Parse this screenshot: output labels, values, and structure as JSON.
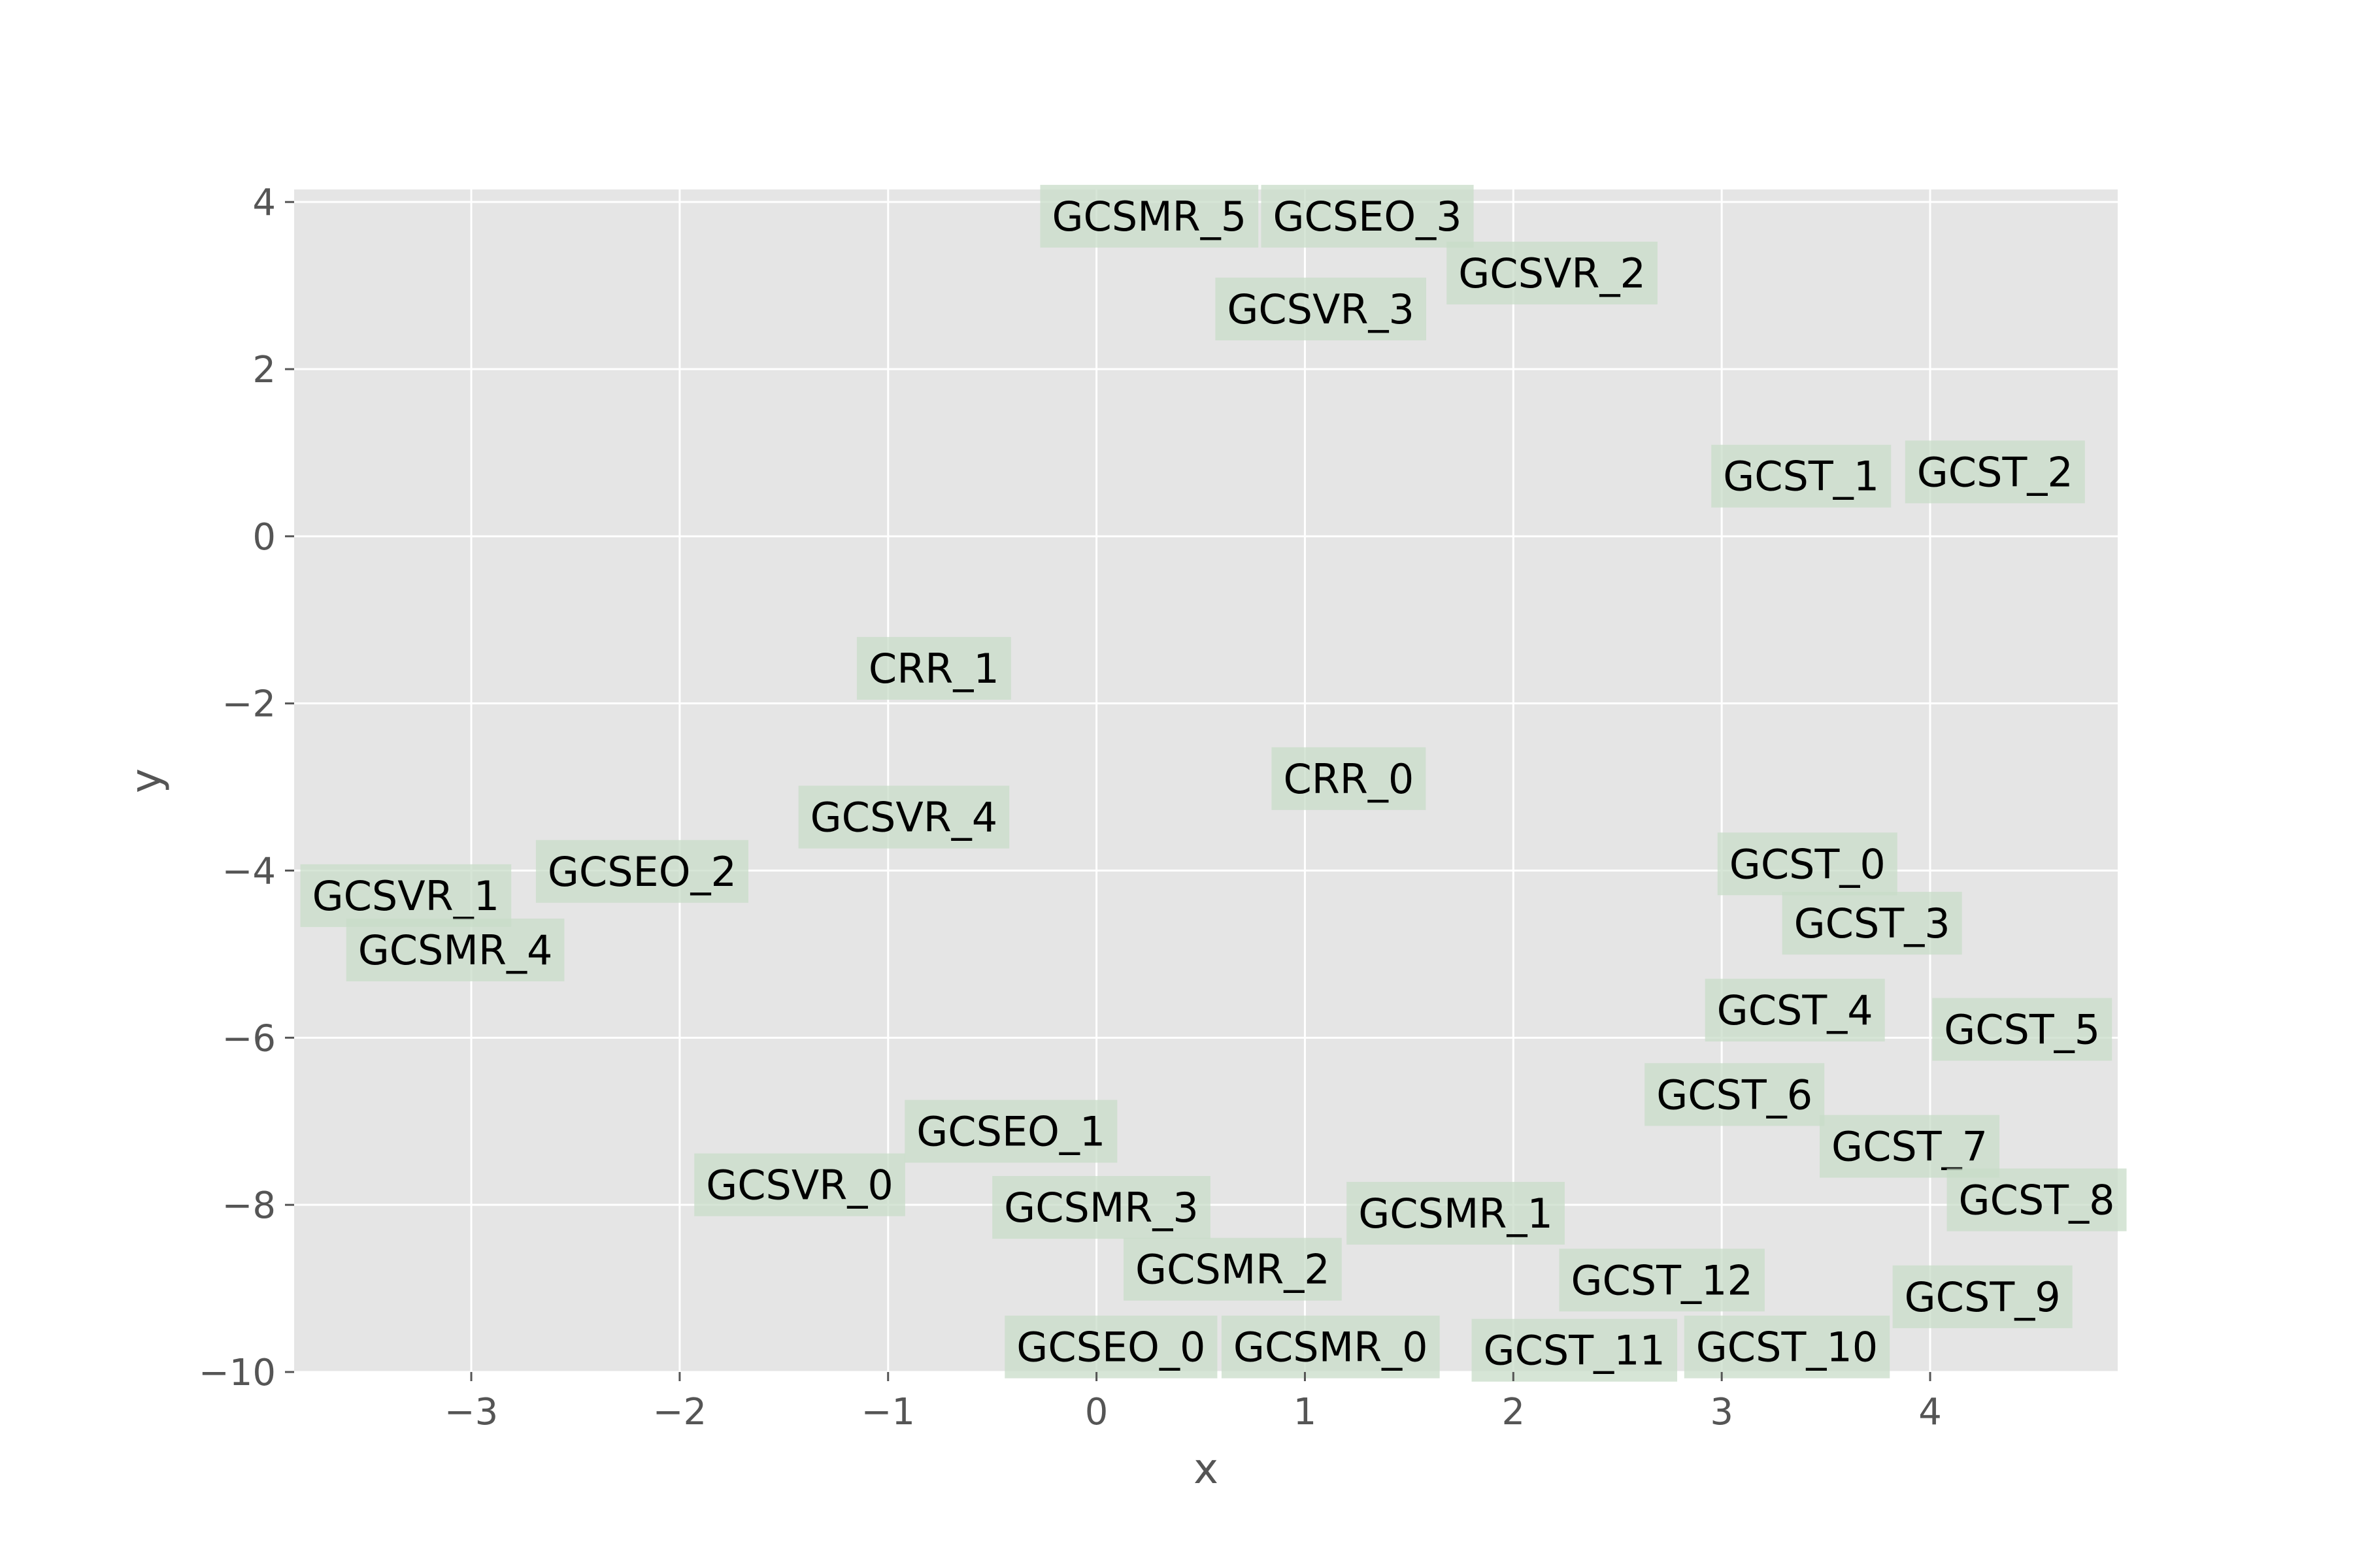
{
  "chart_data": {
    "type": "scatter",
    "title": "",
    "xlabel": "x",
    "ylabel": "y",
    "xlim": [
      -3.85,
      4.9
    ],
    "ylim": [
      -10,
      4.15
    ],
    "xticks": [
      -3,
      -2,
      -1,
      0,
      1,
      2,
      3,
      4
    ],
    "yticks": [
      -10,
      -8,
      -6,
      -4,
      -2,
      0,
      2,
      4
    ],
    "xtick_labels": [
      "−3",
      "−2",
      "−1",
      "0",
      "1",
      "2",
      "3",
      "4"
    ],
    "ytick_labels": [
      "−10",
      "−8",
      "−6",
      "−4",
      "−2",
      "0",
      "2",
      "4"
    ],
    "grid": true,
    "colors": {
      "plot_background": "#e5e5e5",
      "grid": "#ffffff",
      "label_box": "#c8dcc8"
    },
    "points": [
      {
        "label": "GCSMR_5",
        "x": -0.27,
        "y": 3.83
      },
      {
        "label": "GCSEO_3",
        "x": 0.79,
        "y": 3.83
      },
      {
        "label": "GCSVR_2",
        "x": 1.68,
        "y": 3.15
      },
      {
        "label": "GCSVR_3",
        "x": 0.57,
        "y": 2.72
      },
      {
        "label": "GCST_1",
        "x": 2.95,
        "y": 0.72
      },
      {
        "label": "GCST_2",
        "x": 3.88,
        "y": 0.77
      },
      {
        "label": "CRR_1",
        "x": -1.15,
        "y": -1.58
      },
      {
        "label": "CRR_0",
        "x": 0.84,
        "y": -2.9
      },
      {
        "label": "GCSVR_4",
        "x": -1.43,
        "y": -3.36
      },
      {
        "label": "GCST_0",
        "x": 2.98,
        "y": -3.92
      },
      {
        "label": "GCSEO_2",
        "x": -2.69,
        "y": -4.01
      },
      {
        "label": "GCSVR_1",
        "x": -3.82,
        "y": -4.3
      },
      {
        "label": "GCST_3",
        "x": 3.29,
        "y": -4.63
      },
      {
        "label": "GCSMR_4",
        "x": -3.6,
        "y": -4.95
      },
      {
        "label": "GCST_4",
        "x": 2.92,
        "y": -5.67
      },
      {
        "label": "GCST_5",
        "x": 4.01,
        "y": -5.9
      },
      {
        "label": "GCST_6",
        "x": 2.63,
        "y": -6.68
      },
      {
        "label": "GCSEO_1",
        "x": -0.92,
        "y": -7.12
      },
      {
        "label": "GCST_7",
        "x": 3.47,
        "y": -7.3
      },
      {
        "label": "GCSVR_0",
        "x": -1.93,
        "y": -7.76
      },
      {
        "label": "GCST_8",
        "x": 4.08,
        "y": -7.94
      },
      {
        "label": "GCSMR_3",
        "x": -0.5,
        "y": -8.03
      },
      {
        "label": "GCSMR_1",
        "x": 1.2,
        "y": -8.1
      },
      {
        "label": "GCSMR_2",
        "x": 0.13,
        "y": -8.77
      },
      {
        "label": "GCST_12",
        "x": 2.22,
        "y": -8.9
      },
      {
        "label": "GCST_9",
        "x": 3.82,
        "y": -9.1
      },
      {
        "label": "GCSEO_0",
        "x": -0.44,
        "y": -9.7
      },
      {
        "label": "GCSMR_0",
        "x": 0.6,
        "y": -9.7
      },
      {
        "label": "GCST_11",
        "x": 1.8,
        "y": -9.74
      },
      {
        "label": "GCST_10",
        "x": 2.82,
        "y": -9.7
      }
    ]
  }
}
